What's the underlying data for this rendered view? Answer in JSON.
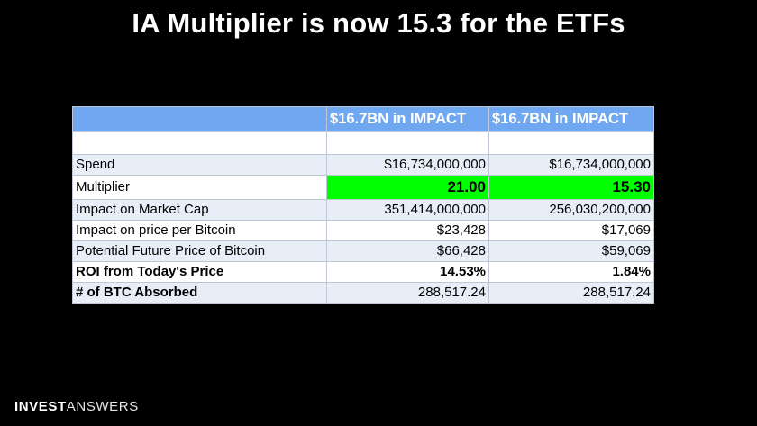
{
  "slide": {
    "title": "IA Multiplier is now 15.3 for the ETFs"
  },
  "table": {
    "header": [
      "",
      "$16.7BN in IMPACT",
      "$16.7BN in IMPACT"
    ],
    "rows": [
      {
        "label": "",
        "a": "",
        "b": ""
      },
      {
        "label": "Spend",
        "a": "$16,734,000,000",
        "b": "$16,734,000,000"
      },
      {
        "label": "Multiplier",
        "a": "21.00",
        "b": "15.30"
      },
      {
        "label": "Impact on Market Cap",
        "a": "351,414,000,000",
        "b": "256,030,200,000"
      },
      {
        "label": "Impact on price per Bitcoin",
        "a": "$23,428",
        "b": "$17,069"
      },
      {
        "label": "Potential Future Price of Bitcoin",
        "a": "$66,428",
        "b": "$59,069"
      },
      {
        "label": "ROI from Today's Price",
        "a": "14.53%",
        "b": "1.84%"
      },
      {
        "label": "# of BTC Absorbed",
        "a": "288,517.24",
        "b": "288,517.24"
      }
    ]
  },
  "brand": {
    "part1": "INVEST",
    "part2": "ANSWERS"
  },
  "colors": {
    "background": "#000000",
    "header_fill": "#6fa8f0",
    "highlight_fill": "#00ff00",
    "alt_row_fill": "#e8eef8"
  }
}
